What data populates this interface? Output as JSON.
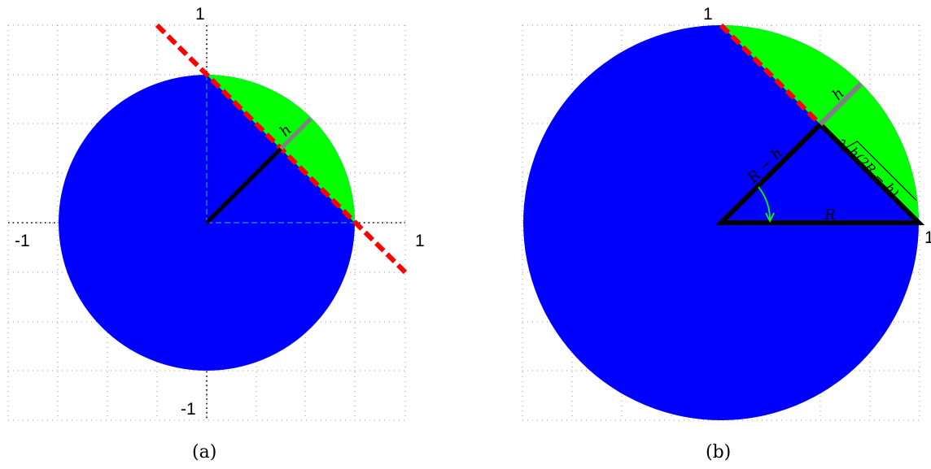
{
  "panel_a": {
    "caption": "(a)",
    "tick_top": "1",
    "tick_bottom": "-1",
    "tick_left": "-1",
    "tick_right": "1",
    "label_h": "h"
  },
  "panel_b": {
    "caption": "(b)",
    "tick_top": "1",
    "tick_right": "1",
    "label_h": "h",
    "label_R_minus_h": "R − h",
    "label_R": "R",
    "label_sqrt_radicand": "h(2R − h)"
  },
  "colors": {
    "disk": "#0000ff",
    "segment": "#00ff00",
    "chord": "#ff0000",
    "h_segment": "#808080",
    "grid": "#999999"
  }
}
